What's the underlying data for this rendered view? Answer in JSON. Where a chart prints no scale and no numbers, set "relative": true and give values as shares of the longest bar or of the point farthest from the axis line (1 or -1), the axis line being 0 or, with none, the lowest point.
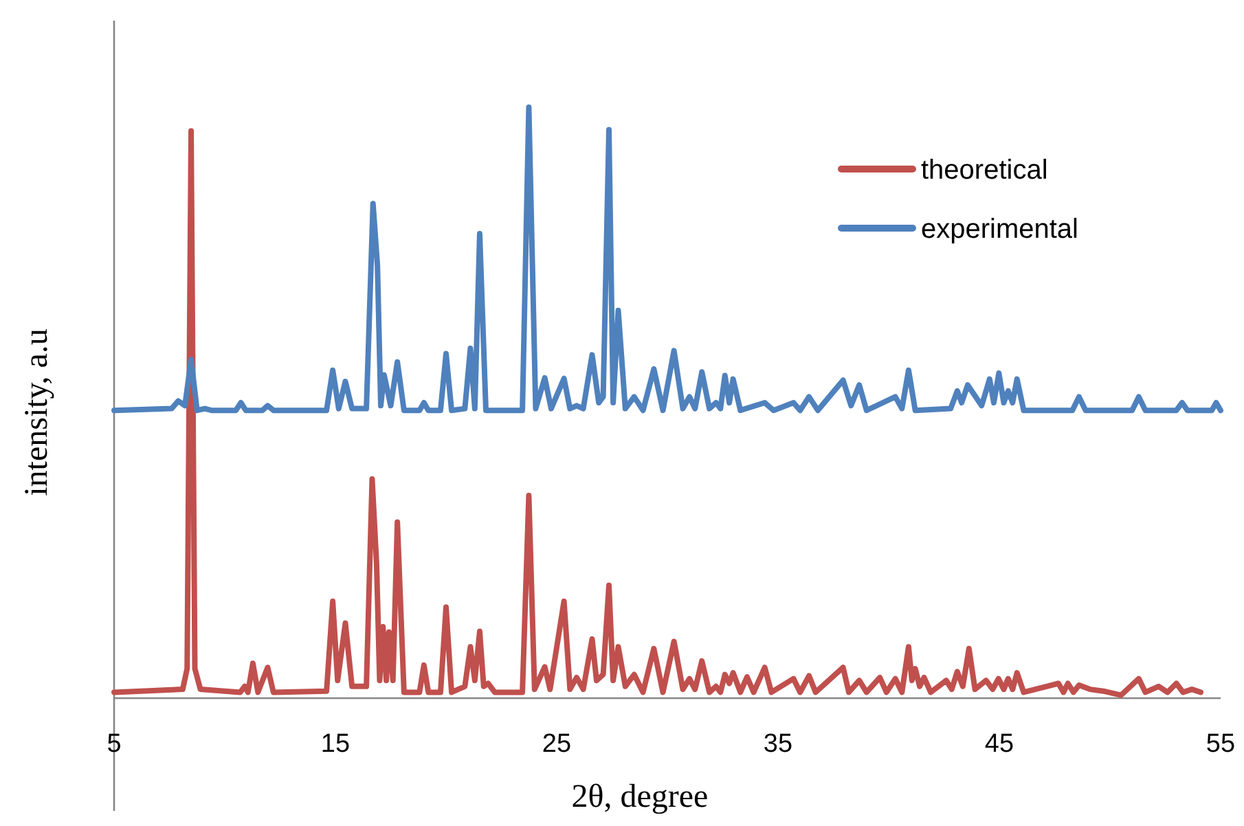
{
  "chart_data": {
    "type": "line",
    "relative": true,
    "xlabel": "2θ, degree",
    "ylabel": "intensity, a.u",
    "xlim": [
      5,
      55
    ],
    "xticks": [
      5,
      15,
      25,
      35,
      45,
      55
    ],
    "legend": "top right",
    "grid": false,
    "line_style": "solid",
    "series": [
      {
        "name": "theoretical",
        "color": "#c0504d",
        "x": [
          5,
          8.1,
          8.3,
          8.48,
          8.65,
          8.9,
          10.7,
          10.9,
          11.05,
          11.27,
          11.5,
          11.94,
          12.2,
          14.6,
          14.88,
          15.1,
          15.45,
          15.75,
          16.4,
          16.66,
          16.86,
          17.0,
          17.15,
          17.3,
          17.42,
          17.6,
          17.8,
          18.1,
          18.8,
          19.0,
          19.2,
          19.75,
          20.0,
          20.25,
          20.85,
          21.1,
          21.3,
          21.52,
          21.7,
          21.9,
          22.2,
          23.45,
          23.74,
          24.0,
          24.46,
          24.7,
          25.33,
          25.6,
          25.9,
          26.2,
          26.6,
          26.8,
          27.1,
          27.36,
          27.55,
          27.78,
          28.1,
          28.5,
          28.9,
          29.39,
          29.8,
          30.3,
          30.7,
          31.0,
          31.25,
          31.56,
          31.9,
          32.2,
          32.4,
          32.6,
          32.8,
          32.97,
          33.3,
          33.6,
          33.9,
          34.4,
          34.7,
          35.7,
          36.0,
          36.4,
          36.7,
          37.94,
          38.2,
          38.67,
          39.0,
          39.6,
          39.9,
          40.3,
          40.6,
          40.9,
          41.05,
          41.2,
          41.4,
          41.6,
          41.9,
          42.6,
          42.85,
          43.1,
          43.35,
          43.63,
          43.9,
          44.4,
          44.7,
          44.96,
          45.2,
          45.4,
          45.6,
          45.8,
          46.1,
          47.67,
          47.9,
          48.1,
          48.35,
          48.6,
          49.1,
          49.7,
          50.5,
          51.3,
          51.6,
          52.2,
          52.6,
          53.0,
          53.3,
          53.7,
          54.1
        ],
        "values": [
          0.01,
          0.015,
          0.05,
          0.96,
          0.05,
          0.015,
          0.01,
          0.02,
          0.01,
          0.059,
          0.01,
          0.052,
          0.01,
          0.012,
          0.164,
          0.03,
          0.127,
          0.02,
          0.02,
          0.371,
          0.228,
          0.03,
          0.121,
          0.03,
          0.112,
          0.03,
          0.298,
          0.01,
          0.01,
          0.056,
          0.01,
          0.01,
          0.154,
          0.01,
          0.02,
          0.087,
          0.03,
          0.113,
          0.02,
          0.025,
          0.01,
          0.01,
          0.343,
          0.015,
          0.053,
          0.015,
          0.164,
          0.015,
          0.035,
          0.015,
          0.1,
          0.03,
          0.04,
          0.191,
          0.03,
          0.087,
          0.02,
          0.04,
          0.01,
          0.084,
          0.01,
          0.096,
          0.015,
          0.033,
          0.015,
          0.063,
          0.01,
          0.02,
          0.01,
          0.04,
          0.025,
          0.043,
          0.01,
          0.036,
          0.01,
          0.052,
          0.01,
          0.033,
          0.01,
          0.038,
          0.01,
          0.052,
          0.01,
          0.03,
          0.01,
          0.035,
          0.01,
          0.033,
          0.01,
          0.087,
          0.03,
          0.05,
          0.02,
          0.035,
          0.01,
          0.03,
          0.015,
          0.045,
          0.02,
          0.084,
          0.015,
          0.03,
          0.015,
          0.033,
          0.015,
          0.033,
          0.015,
          0.043,
          0.01,
          0.025,
          0.01,
          0.025,
          0.01,
          0.022,
          0.015,
          0.012,
          0.005,
          0.033,
          0.01,
          0.02,
          0.01,
          0.025,
          0.01,
          0.015,
          0.01
        ]
      },
      {
        "name": "experimental",
        "color": "#4f81bd",
        "x": [
          5,
          7.6,
          7.9,
          8.2,
          8.48,
          8.75,
          9.1,
          9.4,
          10.5,
          10.73,
          10.95,
          11.7,
          11.94,
          12.2,
          14.6,
          14.88,
          15.15,
          15.45,
          15.75,
          16.4,
          16.7,
          16.9,
          17.05,
          17.2,
          17.5,
          17.8,
          18.1,
          18.8,
          19.0,
          19.2,
          19.75,
          20.0,
          20.25,
          20.85,
          21.1,
          21.3,
          21.52,
          21.8,
          23.45,
          23.74,
          24.05,
          24.46,
          24.75,
          25.33,
          25.6,
          25.9,
          26.2,
          26.6,
          26.9,
          27.1,
          27.36,
          27.55,
          27.78,
          28.1,
          28.5,
          28.9,
          29.39,
          29.8,
          30.3,
          30.7,
          31.0,
          31.25,
          31.56,
          31.9,
          32.2,
          32.4,
          32.6,
          32.8,
          32.97,
          33.3,
          34.4,
          34.8,
          35.7,
          36.0,
          36.4,
          36.8,
          37.94,
          38.3,
          38.67,
          39.0,
          40.3,
          40.6,
          40.9,
          41.2,
          42.8,
          43.1,
          43.3,
          43.57,
          44.2,
          44.56,
          44.75,
          44.98,
          45.2,
          45.4,
          45.6,
          45.8,
          46.1,
          48.3,
          48.6,
          48.9,
          51.0,
          51.3,
          51.6,
          53.0,
          53.26,
          53.5,
          54.6,
          54.8,
          55
        ],
        "values": [
          0.487,
          0.49,
          0.503,
          0.495,
          0.573,
          0.487,
          0.49,
          0.487,
          0.487,
          0.5,
          0.487,
          0.487,
          0.495,
          0.487,
          0.487,
          0.555,
          0.49,
          0.536,
          0.49,
          0.49,
          0.837,
          0.732,
          0.495,
          0.547,
          0.495,
          0.569,
          0.487,
          0.487,
          0.5,
          0.487,
          0.487,
          0.583,
          0.487,
          0.49,
          0.592,
          0.49,
          0.786,
          0.487,
          0.487,
          1,
          0.49,
          0.542,
          0.49,
          0.541,
          0.49,
          0.495,
          0.49,
          0.581,
          0.5,
          0.51,
          0.962,
          0.5,
          0.656,
          0.49,
          0.51,
          0.487,
          0.557,
          0.487,
          0.588,
          0.49,
          0.51,
          0.49,
          0.552,
          0.49,
          0.5,
          0.49,
          0.546,
          0.5,
          0.54,
          0.487,
          0.5,
          0.487,
          0.5,
          0.487,
          0.51,
          0.487,
          0.538,
          0.495,
          0.53,
          0.487,
          0.51,
          0.49,
          0.555,
          0.487,
          0.49,
          0.52,
          0.5,
          0.53,
          0.495,
          0.54,
          0.5,
          0.55,
          0.5,
          0.52,
          0.5,
          0.54,
          0.487,
          0.487,
          0.51,
          0.487,
          0.487,
          0.51,
          0.487,
          0.487,
          0.5,
          0.487,
          0.487,
          0.5,
          0.487
        ]
      }
    ]
  }
}
